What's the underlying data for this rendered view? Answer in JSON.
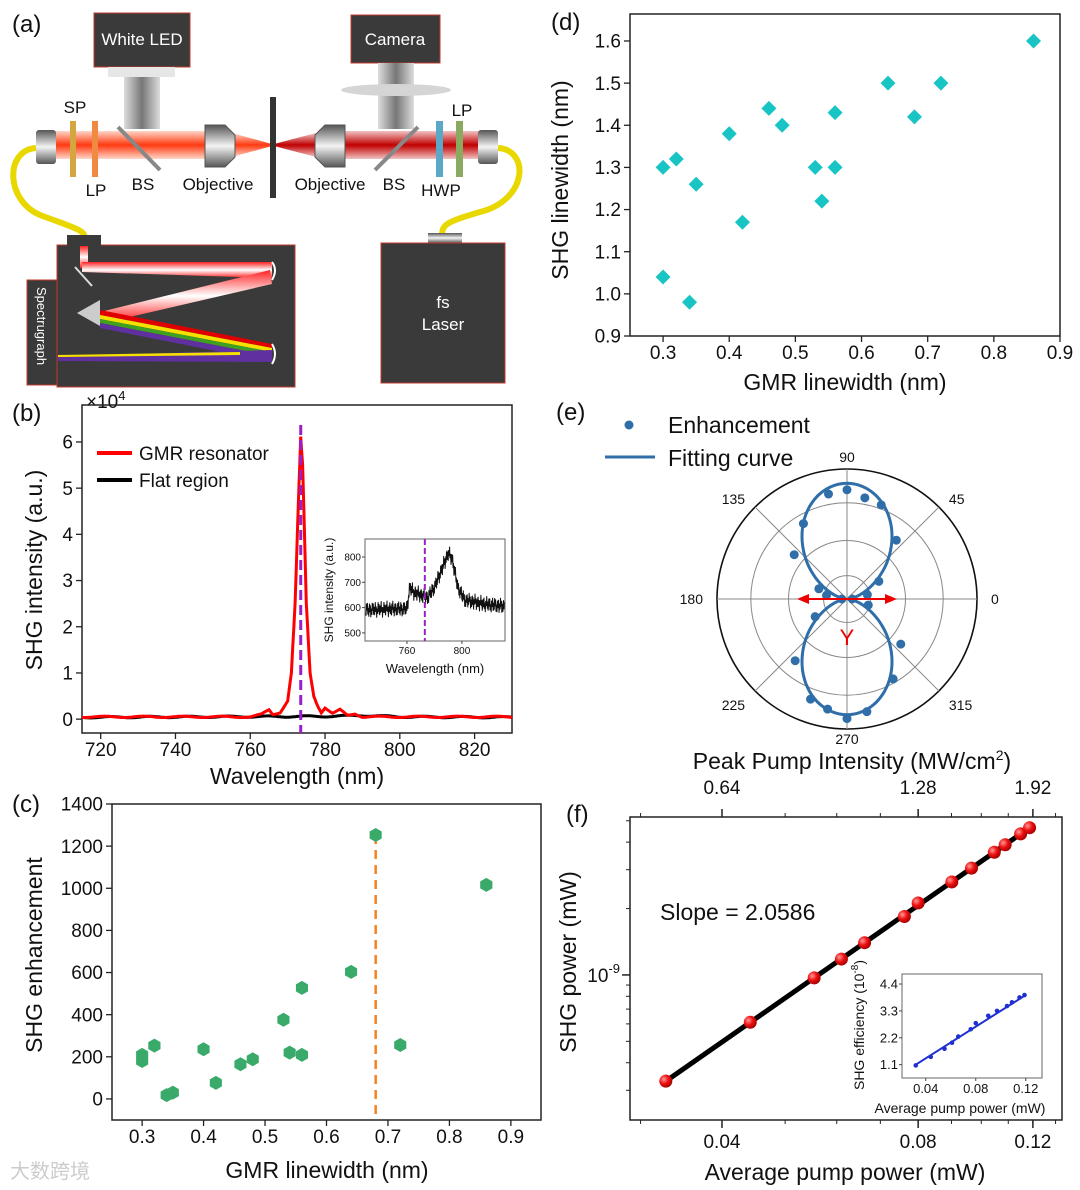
{
  "panel_labels": {
    "a": "(a)",
    "b": "(b)",
    "c": "(c)",
    "d": "(d)",
    "e": "(e)",
    "f": "(f)"
  },
  "setup": {
    "white_led": "White LED",
    "camera": "Camera",
    "sp": "SP",
    "lp_left": "LP",
    "bs_left": "BS",
    "objective_left": "Objective",
    "objective_right": "Objective",
    "bs_right": "BS",
    "hwp": "HWP",
    "lp_right": "LP",
    "spectrograph": "Spectrugraph",
    "laser_line1": "fs",
    "laser_line2": "Laser"
  },
  "watermark": "大数跨境",
  "colors": {
    "gmr": "#ff0000",
    "flat": "#000000",
    "marker_line": "#9b1fc9",
    "c_marker": "#3aaa6a",
    "c_line": "#f58220",
    "d_marker": "#19c4c4",
    "e_marker": "#2f6ea8",
    "f_marker": "#e8141b",
    "inset_f": "#1f2fd0"
  },
  "chart_data": [
    {
      "type": "line",
      "panel": "b",
      "xlabel": "Wavelength (nm)",
      "ylabel": "SHG intensity (a.u.)",
      "y_multiplier": "×10",
      "y_multiplier_exp": "4",
      "xlim": [
        715,
        830
      ],
      "ylim": [
        -0.3,
        6.8
      ],
      "xticks": [
        "720",
        "740",
        "760",
        "780",
        "800",
        "820"
      ],
      "yticks": [
        "0",
        "1",
        "2",
        "3",
        "4",
        "5",
        "6"
      ],
      "marker_wavelength": 773.5,
      "legend": [
        "GMR resonator",
        "Flat region"
      ],
      "series": [
        {
          "name": "GMR resonator",
          "points": [
            [
              715,
              0.05
            ],
            [
              760,
              0.05
            ],
            [
              763,
              0.1
            ],
            [
              765,
              0.2
            ],
            [
              766,
              0.1
            ],
            [
              768,
              0.15
            ],
            [
              770,
              0.4
            ],
            [
              771,
              1.0
            ],
            [
              772,
              2.5
            ],
            [
              773,
              5.0
            ],
            [
              773.5,
              6.1
            ],
            [
              774,
              5.5
            ],
            [
              775,
              2.5
            ],
            [
              776,
              1.0
            ],
            [
              777,
              0.5
            ],
            [
              778,
              0.3
            ],
            [
              779,
              0.15
            ],
            [
              780,
              0.25
            ],
            [
              782,
              0.12
            ],
            [
              784,
              0.2
            ],
            [
              786,
              0.08
            ],
            [
              788,
              0.12
            ],
            [
              790,
              0.05
            ],
            [
              830,
              0.05
            ]
          ]
        },
        {
          "name": "Flat region",
          "points": [
            [
              715,
              0.04
            ],
            [
              780,
              0.06
            ],
            [
              790,
              0.08
            ],
            [
              800,
              0.05
            ],
            [
              830,
              0.04
            ]
          ]
        }
      ],
      "inset": {
        "xlabel": "Wavelength (nm)",
        "ylabel": "SHG intensity (a.u.)",
        "xlim": [
          729.5,
          831.3
        ],
        "ylim": [
          468,
          871
        ],
        "xticks": [
          "760",
          "800"
        ],
        "yticks": [
          "500",
          "600",
          "700",
          "800"
        ],
        "marker_wavelength": 773,
        "points": [
          [
            730,
            590
          ],
          [
            745,
            595
          ],
          [
            760,
            595
          ],
          [
            762,
            680
          ],
          [
            765,
            660
          ],
          [
            770,
            650
          ],
          [
            775,
            640
          ],
          [
            780,
            680
          ],
          [
            786,
            760
          ],
          [
            790,
            815
          ],
          [
            793,
            790
          ],
          [
            797,
            680
          ],
          [
            802,
            630
          ],
          [
            815,
            615
          ],
          [
            831,
            605
          ]
        ]
      }
    },
    {
      "type": "scatter",
      "panel": "c",
      "xlabel": "GMR linewidth (nm)",
      "ylabel": "SHG enhancement",
      "xlim": [
        0.251,
        0.949
      ],
      "ylim": [
        -100,
        1400
      ],
      "xticks": [
        "0.3",
        "0.4",
        "0.5",
        "0.6",
        "0.7",
        "0.8",
        "0.9"
      ],
      "yticks": [
        "0",
        "200",
        "400",
        "600",
        "800",
        "1000",
        "1200",
        "1400"
      ],
      "marker_x": 0.68,
      "x": [
        0.3,
        0.3,
        0.32,
        0.34,
        0.35,
        0.4,
        0.42,
        0.46,
        0.48,
        0.53,
        0.54,
        0.56,
        0.56,
        0.64,
        0.68,
        0.72,
        0.86
      ],
      "y": [
        209,
        180,
        253,
        18,
        30,
        236,
        76,
        165,
        188,
        376,
        220,
        209,
        527,
        603,
        1253,
        256,
        1016
      ]
    },
    {
      "type": "scatter",
      "panel": "d",
      "xlabel": "GMR linewidth (nm)",
      "ylabel": "SHG linewidth (nm)",
      "xlim": [
        0.25,
        0.9
      ],
      "ylim": [
        0.9,
        1.664
      ],
      "xticks": [
        "0.3",
        "0.4",
        "0.5",
        "0.6",
        "0.7",
        "0.8",
        "0.9"
      ],
      "yticks": [
        "0.9",
        "1.0",
        "1.1",
        "1.2",
        "1.3",
        "1.4",
        "1.5",
        "1.6"
      ],
      "x": [
        0.3,
        0.32,
        0.3,
        0.34,
        0.35,
        0.4,
        0.42,
        0.46,
        0.48,
        0.53,
        0.56,
        0.56,
        0.54,
        0.64,
        0.68,
        0.72,
        0.86
      ],
      "y": [
        1.3,
        1.32,
        1.04,
        0.98,
        1.26,
        1.38,
        1.17,
        1.44,
        1.4,
        1.3,
        1.3,
        1.43,
        1.22,
        1.5,
        1.42,
        1.5,
        1.6
      ]
    },
    {
      "type": "polar",
      "panel": "e",
      "legend": [
        "Enhancement",
        "Fitting curve"
      ],
      "angle_labels": [
        "0",
        "45",
        "90",
        "135",
        "180",
        "225",
        "270",
        "315"
      ],
      "polarization_label": "Y",
      "angles": [
        0,
        12,
        29,
        50,
        70,
        80,
        90,
        100,
        120,
        140,
        160,
        170,
        180,
        209,
        230,
        250,
        260,
        270,
        280,
        300,
        320,
        344
      ],
      "r": [
        0.04,
        0.16,
        0.28,
        0.59,
        0.77,
        0.79,
        0.84,
        0.82,
        0.67,
        0.53,
        0.23,
        0.16,
        0.04,
        0.28,
        0.62,
        0.82,
        0.86,
        0.92,
        0.88,
        0.71,
        0.54,
        0.17
      ],
      "fit": {
        "model": "A*sin^2(theta)+B",
        "A": 0.87,
        "B": 0.02
      }
    },
    {
      "type": "line",
      "panel": "f",
      "scale": "log-log",
      "xlabel": "Average pump power (mW)",
      "ylabel": "SHG power (mW)",
      "top_xlabel": "Peak Pump Intensity (MW/cm",
      "top_xlabel_sup": "2",
      "top_xlabel_end": ")",
      "annotation": "Slope = 2.0586",
      "slope": 2.0586,
      "xlim": [
        0.0289,
        0.133
      ],
      "ylim": [
        2.2e-10,
        5.2e-09
      ],
      "xticks": [
        {
          "v": 0.04,
          "label": "0.04"
        },
        {
          "v": 0.08,
          "label": "0.08"
        },
        {
          "v": 0.12,
          "label": "0.12"
        }
      ],
      "top_ticks": [
        {
          "v": 0.64,
          "label": "0.64"
        },
        {
          "v": 1.28,
          "label": "1.28"
        },
        {
          "v": 1.92,
          "label": "1.92"
        }
      ],
      "top_per_bottom": 16,
      "yticks": [
        {
          "v": 1e-09,
          "base": "10",
          "exp": "-9"
        }
      ],
      "x": [
        0.0328,
        0.0442,
        0.0554,
        0.061,
        0.0662,
        0.0762,
        0.08,
        0.0901,
        0.0966,
        0.1047,
        0.1088,
        0.1149,
        0.1186
      ],
      "y": [
        3.3e-10,
        6.1e-10,
        9.7e-10,
        1.18e-09,
        1.4e-09,
        1.84e-09,
        2.12e-09,
        2.64e-09,
        3.05e-09,
        3.6e-09,
        3.89e-09,
        4.36e-09,
        4.65e-09
      ],
      "inset": {
        "xlabel": "Average pump power (mW)",
        "ylabel": "SHG efficiency (10",
        "ylabel_sup": "-8",
        "ylabel_end": ")",
        "xlim": [
          0.021,
          0.133
        ],
        "ylim": [
          0.556,
          4.81
        ],
        "xticks": [
          {
            "v": 0.04,
            "label": "0.04"
          },
          {
            "v": 0.08,
            "label": "0.08"
          },
          {
            "v": 0.12,
            "label": "0.12"
          }
        ],
        "yticks": [
          {
            "v": 1.1,
            "label": "1.1"
          },
          {
            "v": 2.2,
            "label": "2.2"
          },
          {
            "v": 3.3,
            "label": "3.3"
          },
          {
            "v": 4.4,
            "label": "4.4"
          }
        ],
        "x": [
          0.032,
          0.044,
          0.055,
          0.061,
          0.066,
          0.076,
          0.08,
          0.09,
          0.097,
          0.105,
          0.109,
          0.115,
          0.119
        ],
        "y": [
          1.07,
          1.42,
          1.75,
          2.0,
          2.25,
          2.55,
          2.8,
          3.1,
          3.3,
          3.5,
          3.65,
          3.85,
          3.95
        ]
      }
    }
  ]
}
